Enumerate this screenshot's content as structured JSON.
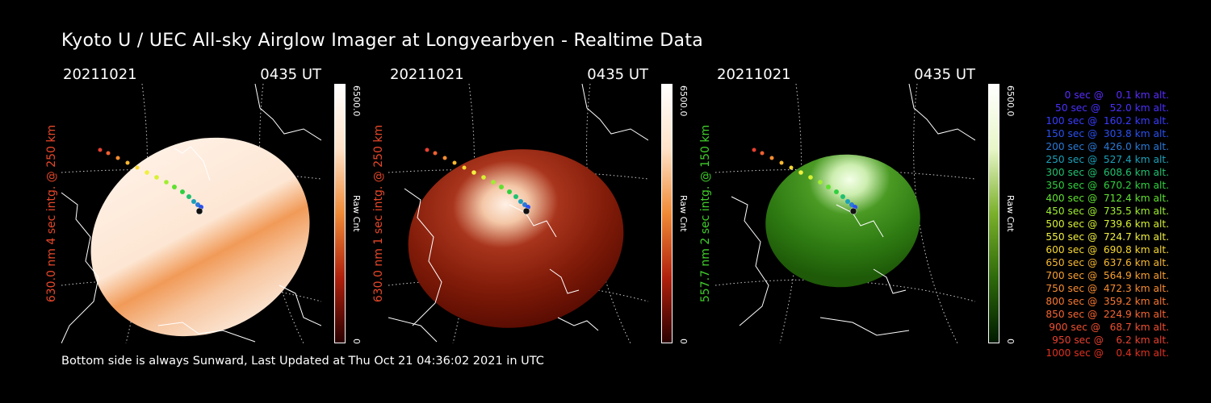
{
  "header": {
    "title": "Kyoto U / UEC All-sky Airglow Imager at Longyearbyen - Realtime Data"
  },
  "footer": {
    "text": "Bottom side is always Sunward, Last Updated at Thu Oct 21 04:36:02 2021 in UTC"
  },
  "panels": [
    {
      "date": "20211021",
      "time": "0435 UT",
      "ylabel": "630.0 nm 4 sec intg. @ 250 km",
      "ylabel_color": "#e8472a",
      "cbar_max": "6500.0",
      "cbar_unit": "Raw Cnt",
      "cbar_min": "0",
      "palette": "orange",
      "brightness_level": "saturated"
    },
    {
      "date": "20211021",
      "time": "0435 UT",
      "ylabel": "630.0 nm 1 sec intg. @ 250 km",
      "ylabel_color": "#e8472a",
      "cbar_max": "6500.0",
      "cbar_unit": "Raw Cnt",
      "cbar_min": "0",
      "palette": "red",
      "brightness_level": "normal"
    },
    {
      "date": "20211021",
      "time": "0435 UT",
      "ylabel": "557.7 nm 2 sec intg. @ 150 km",
      "ylabel_color": "#3fcf2a",
      "cbar_max": "6500.0",
      "cbar_unit": "Raw Cnt",
      "cbar_min": "0",
      "palette": "green",
      "brightness_level": "normal"
    }
  ],
  "legend": [
    {
      "text": "   0 sec @    0.1 km alt.",
      "color": "#5a2cff"
    },
    {
      "text": "  50 sec @   52.0 km alt.",
      "color": "#4a30ff"
    },
    {
      "text": " 100 sec @  160.2 km alt.",
      "color": "#3a3cff"
    },
    {
      "text": " 150 sec @  303.8 km alt.",
      "color": "#2a50f0"
    },
    {
      "text": " 200 sec @  426.0 km alt.",
      "color": "#2a7ad8"
    },
    {
      "text": " 250 sec @  527.4 km alt.",
      "color": "#1aa0b8"
    },
    {
      "text": " 300 sec @  608.6 km alt.",
      "color": "#20c070"
    },
    {
      "text": " 350 sec @  670.2 km alt.",
      "color": "#30d040"
    },
    {
      "text": " 400 sec @  712.4 km alt.",
      "color": "#60e030"
    },
    {
      "text": " 450 sec @  735.5 km alt.",
      "color": "#a0ee30"
    },
    {
      "text": " 500 sec @  739.6 km alt.",
      "color": "#d8f030"
    },
    {
      "text": " 550 sec @  724.7 km alt.",
      "color": "#f0f040"
    },
    {
      "text": " 600 sec @  690.8 km alt.",
      "color": "#f8d830"
    },
    {
      "text": " 650 sec @  637.6 km alt.",
      "color": "#f8b830"
    },
    {
      "text": " 700 sec @  564.9 km alt.",
      "color": "#f8a030"
    },
    {
      "text": " 750 sec @  472.3 km alt.",
      "color": "#f88c30"
    },
    {
      "text": " 800 sec @  359.2 km alt.",
      "color": "#f87830"
    },
    {
      "text": " 850 sec @  224.9 km alt.",
      "color": "#f86430"
    },
    {
      "text": " 900 sec @   68.7 km alt.",
      "color": "#f05030"
    },
    {
      "text": " 950 sec @    6.2 km alt.",
      "color": "#e84030"
    },
    {
      "text": "1000 sec @    0.4 km alt.",
      "color": "#e03020"
    }
  ]
}
